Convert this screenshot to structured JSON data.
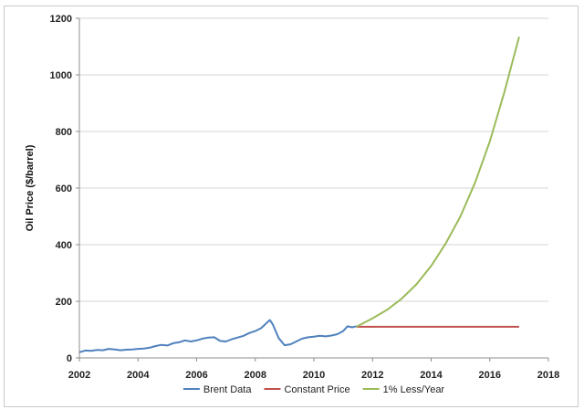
{
  "chart_data": {
    "type": "line",
    "title": "",
    "xlabel": "",
    "ylabel": "Oil Price ($/barrel)",
    "xlim": [
      2002,
      2018
    ],
    "ylim": [
      0,
      1200
    ],
    "x_ticks": [
      "2002",
      "2004",
      "2006",
      "2008",
      "2010",
      "2012",
      "2014",
      "2016",
      "2018"
    ],
    "y_ticks": [
      "0",
      "200",
      "400",
      "600",
      "800",
      "1000",
      "1200"
    ],
    "grid": "horizontal",
    "legend": "bottom",
    "series": [
      {
        "name": "Brent Data",
        "color": "#4f81bd",
        "x": [
          2002.0,
          2002.2,
          2002.4,
          2002.6,
          2002.8,
          2003.0,
          2003.2,
          2003.4,
          2003.6,
          2003.8,
          2004.0,
          2004.2,
          2004.4,
          2004.6,
          2004.8,
          2005.0,
          2005.2,
          2005.4,
          2005.6,
          2005.8,
          2006.0,
          2006.2,
          2006.4,
          2006.6,
          2006.8,
          2007.0,
          2007.2,
          2007.4,
          2007.6,
          2007.8,
          2008.0,
          2008.2,
          2008.4,
          2008.5,
          2008.6,
          2008.8,
          2009.0,
          2009.2,
          2009.4,
          2009.6,
          2009.8,
          2010.0,
          2010.2,
          2010.4,
          2010.6,
          2010.8,
          2011.0,
          2011.15,
          2011.3,
          2011.45
        ],
        "y": [
          20,
          26,
          25,
          28,
          27,
          32,
          30,
          27,
          29,
          30,
          32,
          33,
          36,
          42,
          46,
          44,
          52,
          55,
          62,
          58,
          62,
          68,
          72,
          73,
          60,
          58,
          66,
          72,
          78,
          88,
          95,
          105,
          125,
          134,
          118,
          70,
          45,
          48,
          58,
          68,
          73,
          75,
          78,
          76,
          79,
          84,
          95,
          112,
          108,
          112
        ]
      },
      {
        "name": "Constant Price",
        "color": "#c0504d",
        "x": [
          2011.45,
          2017.0
        ],
        "y": [
          110,
          110
        ]
      },
      {
        "name": "1% Less/Year",
        "color": "#9bbb59",
        "x": [
          2011.45,
          2012.0,
          2012.5,
          2013.0,
          2013.5,
          2014.0,
          2014.5,
          2015.0,
          2015.5,
          2016.0,
          2016.5,
          2017.0
        ],
        "y": [
          110,
          140,
          170,
          210,
          260,
          325,
          405,
          500,
          620,
          765,
          940,
          1135
        ]
      }
    ]
  }
}
